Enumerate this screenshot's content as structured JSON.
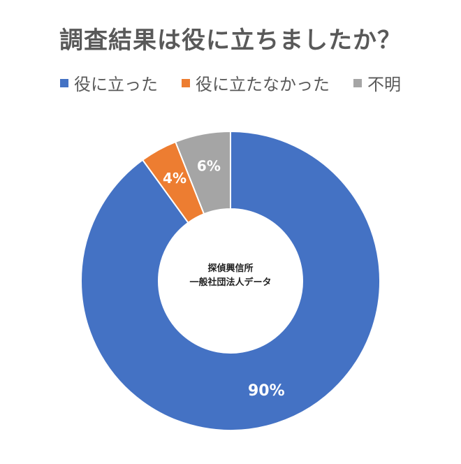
{
  "chart_data": {
    "type": "pie",
    "subtype": "donut",
    "title": "調査結果は役に立ちましたか？",
    "categories": [
      "役に立った",
      "役に立たなかった",
      "不明"
    ],
    "values": [
      90,
      4,
      6
    ],
    "labels": [
      "90%",
      "4%",
      "6%"
    ],
    "colors": [
      "#4472C4",
      "#ED7D31",
      "#A5A5A5"
    ],
    "legend_position": "top",
    "center_text": [
      "探偵興信所",
      "一般社団法人データ"
    ]
  }
}
